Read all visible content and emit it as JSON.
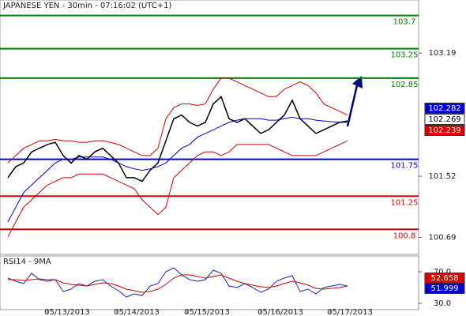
{
  "chart_data": [
    {
      "type": "line",
      "title": "JAPANESE YEN - 30min - 07:16:02 (UTC+1)",
      "x": [
        0,
        1,
        2,
        3,
        4,
        5,
        6,
        7,
        8,
        9,
        10,
        11,
        12,
        13,
        14,
        15,
        16,
        17,
        18,
        19,
        20,
        21,
        22,
        23,
        24,
        25,
        26,
        27,
        28,
        29,
        30,
        31,
        32,
        33,
        34,
        35,
        36,
        37,
        38,
        39,
        40,
        41,
        42,
        43
      ],
      "xlim": [
        -1,
        52
      ],
      "ylim": [
        100.46,
        103.91
      ],
      "yticks": [
        103.19,
        101.52,
        100.69
      ],
      "series": [
        {
          "name": "upper-band",
          "color": "#cc0000",
          "values": [
            101.7,
            101.8,
            101.9,
            101.95,
            102.0,
            102.0,
            102.02,
            102.0,
            102.0,
            101.98,
            101.98,
            102.0,
            102.0,
            101.98,
            101.95,
            101.9,
            101.85,
            101.8,
            101.8,
            101.9,
            102.3,
            102.45,
            102.5,
            102.5,
            102.48,
            102.5,
            102.7,
            102.85,
            102.85,
            102.8,
            102.75,
            102.7,
            102.65,
            102.6,
            102.6,
            102.7,
            102.75,
            102.8,
            102.75,
            102.65,
            102.5,
            102.45,
            102.4,
            102.35
          ]
        },
        {
          "name": "lower-band",
          "color": "#cc0000",
          "values": [
            100.7,
            100.9,
            101.1,
            101.2,
            101.3,
            101.4,
            101.45,
            101.5,
            101.5,
            101.55,
            101.55,
            101.55,
            101.55,
            101.5,
            101.45,
            101.4,
            101.35,
            101.2,
            101.1,
            101.0,
            101.1,
            101.5,
            101.6,
            101.7,
            101.8,
            101.85,
            101.85,
            101.8,
            101.85,
            101.95,
            101.95,
            101.95,
            101.95,
            101.95,
            101.9,
            101.85,
            101.8,
            101.8,
            101.8,
            101.8,
            101.85,
            101.9,
            101.95,
            102.0
          ]
        },
        {
          "name": "moving-average",
          "color": "#0000cc",
          "values": [
            100.9,
            101.1,
            101.3,
            101.4,
            101.5,
            101.6,
            101.7,
            101.75,
            101.75,
            101.78,
            101.78,
            101.78,
            101.78,
            101.75,
            101.7,
            101.65,
            101.62,
            101.6,
            101.62,
            101.65,
            101.7,
            101.8,
            101.9,
            101.95,
            102.05,
            102.1,
            102.15,
            102.2,
            102.25,
            102.28,
            102.3,
            102.3,
            102.3,
            102.28,
            102.28,
            102.3,
            102.32,
            102.3,
            102.3,
            102.28,
            102.27,
            102.26,
            102.25,
            102.25
          ]
        },
        {
          "name": "price",
          "color": "#000000",
          "values": [
            101.5,
            101.65,
            101.7,
            101.85,
            101.9,
            101.95,
            101.98,
            101.8,
            101.7,
            101.8,
            101.75,
            101.85,
            101.9,
            101.8,
            101.7,
            101.5,
            101.5,
            101.45,
            101.6,
            101.7,
            102.0,
            102.3,
            102.35,
            102.25,
            102.2,
            102.25,
            102.5,
            102.6,
            102.3,
            102.25,
            102.3,
            102.2,
            102.1,
            102.15,
            102.25,
            102.35,
            102.55,
            102.3,
            102.2,
            102.1,
            102.15,
            102.2,
            102.25,
            102.27
          ]
        }
      ],
      "levels": [
        {
          "value": 103.7,
          "color": "#008000"
        },
        {
          "value": 103.25,
          "color": "#008000"
        },
        {
          "value": 102.85,
          "color": "#008000"
        },
        {
          "value": 101.75,
          "color": "#0000cc"
        },
        {
          "value": 101.25,
          "color": "#dd0000"
        },
        {
          "value": 100.8,
          "color": "#dd0000"
        }
      ],
      "last_labels": [
        {
          "value": 102.282,
          "color": "#0000cc"
        },
        {
          "value": 102.269,
          "color": "#ffffff"
        },
        {
          "value": 102.239,
          "color": "#dd0000"
        }
      ]
    },
    {
      "type": "line",
      "title": "RSI14 - 9MA",
      "x": [
        0,
        1,
        2,
        3,
        4,
        5,
        6,
        7,
        8,
        9,
        10,
        11,
        12,
        13,
        14,
        15,
        16,
        17,
        18,
        19,
        20,
        21,
        22,
        23,
        24,
        25,
        26,
        27,
        28,
        29,
        30,
        31,
        32,
        33,
        34,
        35,
        36,
        37,
        38,
        39,
        40,
        41,
        42,
        43
      ],
      "xlim": [
        -1,
        52
      ],
      "ylim": [
        22,
        89
      ],
      "yticks": [
        {
          "value": 70,
          "label": "70.0"
        },
        {
          "value": 30,
          "label": "30.0"
        }
      ],
      "xticks": [
        {
          "value": 5,
          "label": "05/13/2013"
        },
        {
          "value": 13.8,
          "label": "05/14/2013"
        },
        {
          "value": 22.7,
          "label": "05/15/2013"
        },
        {
          "value": 32,
          "label": "05/16/2013"
        },
        {
          "value": 40.8,
          "label": "05/17/2013"
        }
      ],
      "series": [
        {
          "name": "rsi",
          "color": "#2222aa",
          "values": [
            62,
            58,
            55,
            68,
            60,
            58,
            60,
            45,
            48,
            55,
            52,
            58,
            60,
            52,
            46,
            38,
            42,
            40,
            52,
            55,
            70,
            75,
            66,
            60,
            58,
            60,
            72,
            68,
            52,
            50,
            55,
            50,
            44,
            48,
            58,
            62,
            65,
            45,
            48,
            42,
            50,
            52,
            54,
            52
          ]
        },
        {
          "name": "rsi-ma",
          "color": "#cc0000",
          "values": [
            60,
            60,
            59,
            60,
            61,
            60,
            60,
            56,
            54,
            53,
            52,
            54,
            56,
            55,
            52,
            48,
            46,
            44,
            45,
            48,
            54,
            62,
            66,
            66,
            64,
            62,
            64,
            66,
            62,
            58,
            55,
            53,
            51,
            50,
            52,
            55,
            58,
            56,
            53,
            49,
            48,
            49,
            50,
            52
          ]
        }
      ],
      "last_labels": [
        {
          "value": 52.658,
          "color": "#dd0000"
        },
        {
          "value": 51.999,
          "color": "#0000cc"
        }
      ]
    }
  ]
}
